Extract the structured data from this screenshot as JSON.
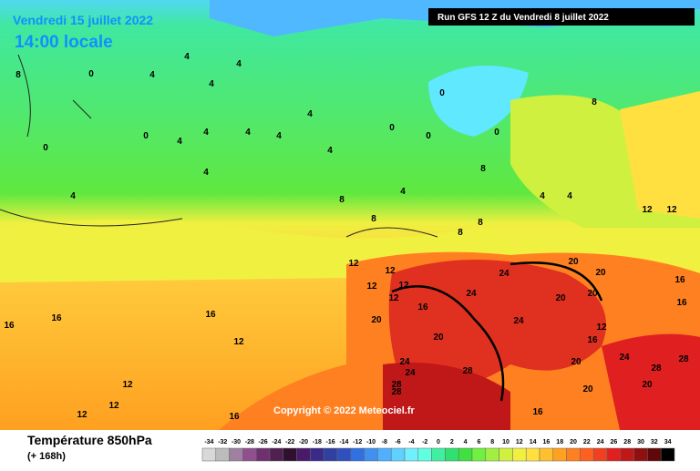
{
  "header": {
    "date": "Vendredi 15 juillet 2022",
    "time": "14:00 locale",
    "run": "Run GFS 12 Z du Vendredi 8 juillet 2022"
  },
  "copyright": "Copyright © 2022 Meteociel.fr",
  "footer": {
    "title": "Température 850hPa",
    "subtitle": "(+ 168h)"
  },
  "contour_labels": [
    4,
    8,
    0,
    4,
    4,
    4,
    4,
    0,
    0,
    4,
    4,
    4,
    4,
    4,
    4,
    4,
    0,
    0,
    0,
    0,
    8,
    8,
    8,
    8,
    4,
    4,
    4,
    8,
    8,
    12,
    12,
    12,
    12,
    12,
    12,
    12,
    16,
    16,
    16,
    12,
    12,
    16,
    16,
    20,
    20,
    24,
    24,
    24,
    20,
    20,
    20,
    20,
    24,
    24,
    28,
    28,
    28,
    24,
    28,
    28,
    20,
    16,
    12,
    12,
    12,
    16,
    20,
    20,
    16,
    16
  ],
  "legend": {
    "ticks": [
      -34,
      -32,
      -30,
      -28,
      -26,
      -24,
      -22,
      -20,
      -18,
      -16,
      -14,
      -12,
      -10,
      -8,
      -6,
      -4,
      -2,
      0,
      2,
      4,
      6,
      8,
      10,
      12,
      14,
      16,
      18,
      20,
      22,
      24,
      26,
      28,
      30,
      32,
      34
    ],
    "colors": [
      "#d8d8d8",
      "#bcbcbc",
      "#a080a0",
      "#905090",
      "#703070",
      "#502050",
      "#301030",
      "#4a1a6a",
      "#3a2a8a",
      "#3040a0",
      "#3050c0",
      "#3070e0",
      "#4090f0",
      "#50b0ff",
      "#60d0ff",
      "#70f0ff",
      "#60ffe0",
      "#40f0a0",
      "#30e070",
      "#40e040",
      "#70f040",
      "#a0f040",
      "#d0f040",
      "#f0f040",
      "#ffe040",
      "#ffc030",
      "#ffa020",
      "#ff8020",
      "#ff6020",
      "#f04020",
      "#e02020",
      "#c01818",
      "#901010",
      "#600808",
      "#000000"
    ]
  }
}
